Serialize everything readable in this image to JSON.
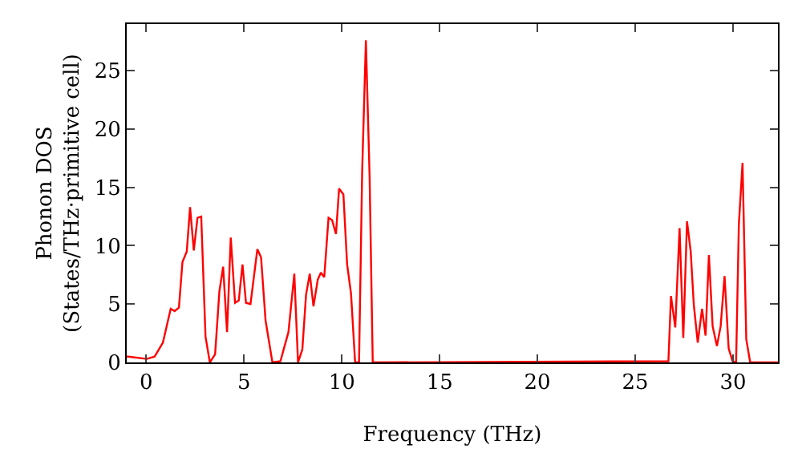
{
  "chart_data": {
    "type": "line",
    "xlabel": "Frequency (THz)",
    "ylabel": "Phonon DOS\n(States/THz·primitive cell)",
    "x": [
      -1,
      -0.93,
      0.03,
      0.43,
      0.85,
      1.25,
      1.45,
      1.67,
      1.85,
      2.07,
      2.24,
      2.43,
      2.62,
      2.81,
      3.03,
      3.25,
      3.52,
      3.74,
      3.93,
      4.13,
      4.32,
      4.54,
      4.73,
      4.92,
      5.1,
      5.33,
      5.68,
      5.87,
      6.1,
      6.45,
      6.86,
      7.27,
      7.57,
      7.76,
      7.98,
      8.17,
      8.36,
      8.55,
      8.77,
      8.93,
      9.1,
      9.32,
      9.5,
      9.7,
      9.86,
      10.08,
      10.27,
      10.47,
      10.68,
      10.88,
      11.04,
      11.23,
      11.42,
      11.58,
      26.7,
      26.83,
      27.05,
      27.27,
      27.46,
      27.65,
      27.84,
      28.0,
      28.2,
      28.42,
      28.6,
      28.77,
      28.96,
      29.18,
      29.37,
      29.57,
      29.78,
      29.98,
      30.16,
      30.3,
      30.49,
      30.68,
      30.88,
      32.3
    ],
    "series": [
      {
        "color": "#ff0000",
        "values": [
          0.5,
          0.5,
          0.3,
          0.5,
          1.7,
          4.6,
          4.4,
          4.7,
          8.6,
          9.5,
          13.3,
          9.6,
          12.4,
          12.5,
          2.2,
          0,
          0.7,
          6.1,
          8.2,
          2.6,
          10.7,
          5.1,
          5.3,
          8.4,
          5.1,
          5.0,
          9.7,
          9.0,
          3.6,
          0,
          0.1,
          2.6,
          7.6,
          0,
          1.1,
          5.8,
          7.6,
          4.8,
          7.1,
          7.7,
          7.3,
          12.4,
          12.2,
          11.0,
          14.9,
          14.4,
          8.4,
          5.9,
          0,
          0,
          16.4,
          27.6,
          15.9,
          0,
          0.1,
          5.7,
          3.0,
          11.5,
          2.1,
          12.1,
          9.5,
          4.9,
          1.7,
          4.6,
          2.3,
          9.2,
          3.1,
          1.4,
          3.1,
          7.4,
          1.2,
          0.1,
          0,
          11.8,
          17.1,
          2.0,
          0,
          0
        ]
      }
    ],
    "xlim": [
      -1,
      32.3
    ],
    "ylim": [
      0,
      29
    ],
    "xticks": [
      0,
      5,
      10,
      15,
      20,
      25,
      30
    ],
    "yticks": [
      0,
      5,
      10,
      15,
      20,
      25
    ],
    "grid": false,
    "marker": "none",
    "line_style": "solid"
  }
}
